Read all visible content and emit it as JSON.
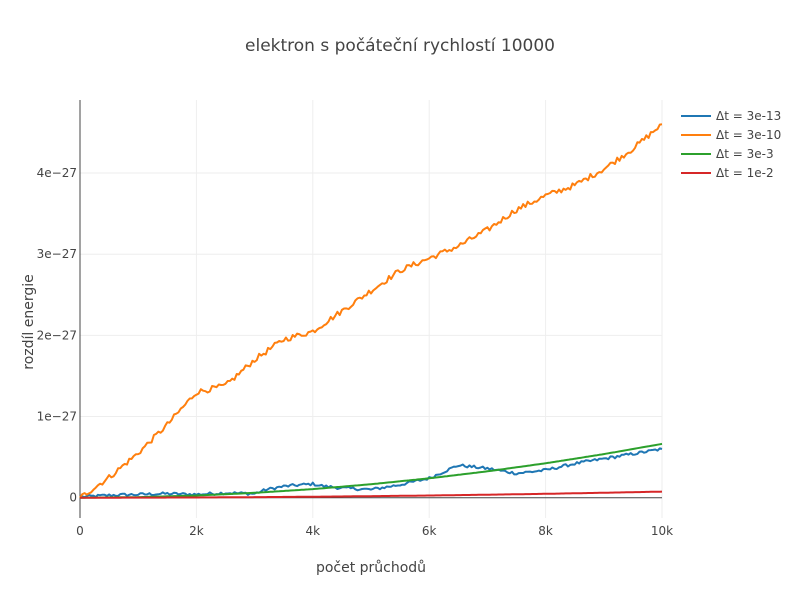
{
  "chart_data": {
    "type": "line",
    "title": "elektron s počáteční rychlostí 10000",
    "xlabel": "počet průchodů",
    "ylabel": "rozdíl energie",
    "xlim": [
      0,
      10000
    ],
    "ylim": [
      -2.5e-28,
      4.9e-27
    ],
    "x_ticks": [
      0,
      2000,
      4000,
      6000,
      8000,
      10000
    ],
    "x_tick_labels": [
      "0",
      "2k",
      "4k",
      "6k",
      "8k",
      "10k"
    ],
    "y_ticks": [
      0,
      1e-27,
      2e-27,
      3e-27,
      4e-27
    ],
    "y_tick_labels": [
      "0",
      "1e−27",
      "2e−27",
      "3e−27",
      "4e−27"
    ],
    "grid": true,
    "legend": "top-right",
    "series": [
      {
        "name": "Δt = 3e-13",
        "color": "#1f77b4",
        "x": [
          0,
          500,
          1000,
          1500,
          2000,
          2500,
          3000,
          3200,
          3500,
          4000,
          4200,
          4500,
          5000,
          5500,
          6000,
          6500,
          7000,
          7500,
          8000,
          8500,
          9000,
          9500,
          10000
        ],
        "y": [
          1e-29,
          3e-29,
          4e-29,
          5e-29,
          4e-29,
          6e-29,
          5e-29,
          1e-28,
          1.4e-28,
          1.7e-28,
          1.4e-28,
          1.2e-28,
          1e-28,
          1.6e-28,
          2.4e-28,
          4e-28,
          3.6e-28,
          3e-28,
          3.4e-28,
          4.2e-28,
          4.8e-28,
          5.4e-28,
          6e-28
        ]
      },
      {
        "name": "Δt = 3e-10",
        "color": "#ff7f0e",
        "x": [
          0,
          500,
          1000,
          1500,
          2000,
          2500,
          3000,
          3500,
          4000,
          4500,
          5000,
          5500,
          6000,
          6500,
          7000,
          7500,
          8000,
          8500,
          9000,
          9500,
          10000
        ],
        "y": [
          0.0,
          2.5e-28,
          5.5e-28,
          9e-28,
          1.3e-27,
          1.38e-27,
          1.7e-27,
          1.95e-27,
          2.05e-27,
          2.3e-27,
          2.55e-27,
          2.8e-27,
          2.95e-27,
          3.1e-27,
          3.3e-27,
          3.55e-27,
          3.72e-27,
          3.85e-27,
          4.05e-27,
          4.3e-27,
          4.6e-27
        ]
      },
      {
        "name": "Δt = 3e-3",
        "color": "#2ca02c",
        "x": [
          0,
          1000,
          2000,
          3000,
          4000,
          5000,
          6000,
          7000,
          8000,
          9000,
          10000
        ],
        "y": [
          0.0,
          7e-30,
          2.7e-29,
          6e-29,
          1.06e-28,
          1.66e-28,
          2.39e-28,
          3.25e-28,
          4.24e-28,
          5.37e-28,
          6.63e-28
        ]
      },
      {
        "name": "Δt = 1e-2",
        "color": "#d62728",
        "x": [
          0,
          1000,
          2000,
          3000,
          4000,
          5000,
          6000,
          7000,
          8000,
          9000,
          10000
        ],
        "y": [
          0.0,
          1e-30,
          3e-30,
          7e-30,
          1.2e-29,
          1.9e-29,
          2.7e-29,
          3.7e-29,
          4.8e-29,
          6.1e-29,
          7.5e-29
        ]
      }
    ]
  }
}
